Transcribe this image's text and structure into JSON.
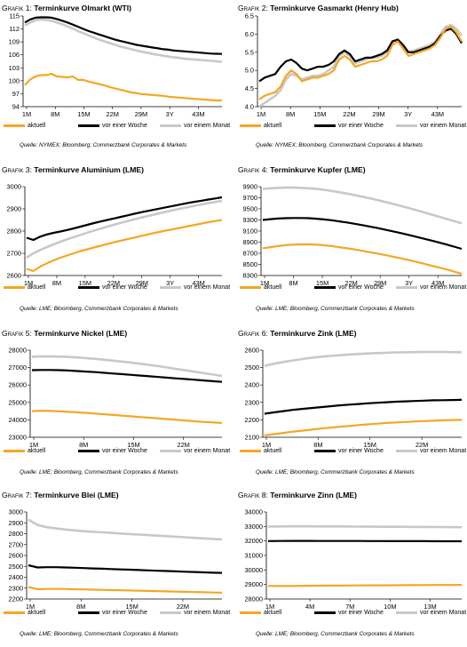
{
  "legend_labels": [
    "aktuell",
    "vor einer Woche",
    "vor einem Monat"
  ],
  "colors": {
    "aktuell": "#F5A623",
    "vor_einer_woche": "#000000",
    "vor_einem_monat": "#C8C8C8"
  },
  "chart_data": [
    {
      "type": "line",
      "prefix": "Grafik 1: ",
      "title": "Terminkurve Olmarkt (WTI)",
      "source": "Quelle: NYMEX; Bloomberg; Commerzbank Corporates & Markets",
      "x_ticks": [
        "1M",
        "8M",
        "15M",
        "22M",
        "29M",
        "3Y",
        "43M"
      ],
      "y_ticks": [
        94,
        97,
        100,
        103,
        106,
        109,
        112,
        115
      ],
      "ylim": [
        94,
        115
      ],
      "series": [
        {
          "name": "aktuell",
          "values": [
            99.0,
            100.3,
            101.0,
            101.3,
            101.3,
            101.6,
            101.0,
            100.9,
            100.8,
            101.0,
            100.2,
            100.2,
            99.8,
            99.5,
            99.2,
            98.9,
            98.5,
            98.2,
            97.9,
            97.6,
            97.3,
            97.1,
            96.9,
            96.8,
            96.7,
            96.6,
            96.5,
            96.3,
            96.2,
            96.1,
            96.0,
            95.9,
            95.8,
            95.7,
            95.6,
            95.5,
            95.45,
            95.4
          ]
        },
        {
          "name": "vor einer Woche",
          "values": [
            113.5,
            114.2,
            114.6,
            114.7,
            114.7,
            114.6,
            114.3,
            113.9,
            113.5,
            113.0,
            112.5,
            112.0,
            111.5,
            111.1,
            110.7,
            110.3,
            109.9,
            109.5,
            109.2,
            108.9,
            108.6,
            108.3,
            108.1,
            107.9,
            107.7,
            107.5,
            107.3,
            107.2,
            107.0,
            106.9,
            106.8,
            106.7,
            106.6,
            106.5,
            106.4,
            106.3,
            106.25,
            106.2
          ]
        },
        {
          "name": "vor einem Monat",
          "values": [
            112.8,
            113.5,
            114.0,
            114.2,
            114.1,
            113.9,
            113.5,
            113.1,
            112.6,
            112.1,
            111.5,
            111.0,
            110.5,
            110.0,
            109.5,
            109.1,
            108.7,
            108.3,
            107.9,
            107.6,
            107.3,
            107.0,
            106.7,
            106.5,
            106.2,
            106.0,
            105.8,
            105.6,
            105.4,
            105.3,
            105.1,
            105.0,
            104.9,
            104.8,
            104.7,
            104.6,
            104.5,
            104.4
          ]
        }
      ]
    },
    {
      "type": "line",
      "prefix": "Grafik 2: ",
      "title": "Terminkurve Gasmarkt (Henry Hub)",
      "source": "Quelle: NYMEX; Bloomberg, Commerzbank Corporates & Markets",
      "x_ticks": [
        "1M",
        "8M",
        "15M",
        "22M",
        "29M",
        "3Y",
        "43M"
      ],
      "y_ticks": [
        4.0,
        4.5,
        5.0,
        5.5,
        6.0,
        6.5
      ],
      "ylim": [
        4.0,
        6.5
      ],
      "series": [
        {
          "name": "aktuell",
          "values": [
            4.2,
            4.3,
            4.35,
            4.4,
            4.55,
            4.85,
            5.0,
            4.9,
            4.7,
            4.75,
            4.8,
            4.8,
            4.85,
            4.9,
            5.0,
            5.3,
            5.4,
            5.3,
            5.1,
            5.15,
            5.2,
            5.25,
            5.25,
            5.3,
            5.4,
            5.7,
            5.8,
            5.6,
            5.4,
            5.45,
            5.5,
            5.55,
            5.6,
            5.7,
            5.9,
            6.15,
            6.2,
            6.05,
            5.8
          ]
        },
        {
          "name": "vor einer Woche",
          "values": [
            4.7,
            4.8,
            4.85,
            4.9,
            5.1,
            5.25,
            5.3,
            5.2,
            5.05,
            5.0,
            5.05,
            5.1,
            5.1,
            5.15,
            5.25,
            5.45,
            5.55,
            5.45,
            5.25,
            5.3,
            5.35,
            5.35,
            5.4,
            5.45,
            5.55,
            5.8,
            5.85,
            5.7,
            5.5,
            5.5,
            5.55,
            5.6,
            5.65,
            5.75,
            5.95,
            6.1,
            6.15,
            6.0,
            5.75
          ]
        },
        {
          "name": "vor einem Monat",
          "values": [
            4.0,
            4.1,
            4.2,
            4.3,
            4.45,
            4.75,
            4.9,
            4.85,
            4.75,
            4.8,
            4.85,
            4.85,
            4.9,
            5.0,
            5.1,
            5.4,
            5.5,
            5.4,
            5.2,
            5.25,
            5.3,
            5.35,
            5.35,
            5.4,
            5.5,
            5.8,
            5.85,
            5.7,
            5.5,
            5.55,
            5.6,
            5.65,
            5.7,
            5.8,
            6.0,
            6.2,
            6.25,
            6.15,
            5.95
          ]
        }
      ]
    },
    {
      "type": "line",
      "prefix": "Grafik 3: ",
      "title": "Terminkurve Aluminium (LME)",
      "source": "Quelle: LME; Bloomberg, Commerzbank Corporates & Markets",
      "x_ticks": [
        "1M",
        "8M",
        "15M",
        "22M",
        "29M",
        "3Y",
        "43M"
      ],
      "y_ticks": [
        2600,
        2700,
        2800,
        2900,
        3000
      ],
      "ylim": [
        2600,
        3000
      ],
      "series": [
        {
          "name": "aktuell",
          "values": [
            2630,
            2620,
            2640,
            2655,
            2668,
            2680,
            2690,
            2700,
            2710,
            2718,
            2726,
            2734,
            2742,
            2750,
            2757,
            2764,
            2771,
            2778,
            2785,
            2792,
            2798,
            2804,
            2810,
            2816,
            2822,
            2828,
            2834,
            2840,
            2845,
            2850
          ]
        },
        {
          "name": "vor einer Woche",
          "values": [
            2770,
            2760,
            2775,
            2785,
            2792,
            2798,
            2805,
            2812,
            2820,
            2828,
            2836,
            2843,
            2850,
            2857,
            2864,
            2871,
            2878,
            2885,
            2891,
            2897,
            2903,
            2909,
            2915,
            2921,
            2927,
            2932,
            2937,
            2942,
            2947,
            2952
          ]
        },
        {
          "name": "vor einem Monat",
          "values": [
            2680,
            2700,
            2715,
            2728,
            2740,
            2752,
            2763,
            2773,
            2783,
            2793,
            2802,
            2811,
            2820,
            2829,
            2837,
            2845,
            2853,
            2861,
            2868,
            2875,
            2882,
            2889,
            2896,
            2902,
            2908,
            2914,
            2920,
            2926,
            2931,
            2936
          ]
        }
      ]
    },
    {
      "type": "line",
      "prefix": "Grafik 4: ",
      "title": "Terminkurve Kupfer (LME)",
      "source": "Quelle: LME; Bloomberg, Commerzbank Corporates & Markets",
      "x_ticks": [
        "1M",
        "8M",
        "15M",
        "22M",
        "29M",
        "3Y",
        "43M"
      ],
      "y_ticks": [
        8300,
        8500,
        8700,
        8900,
        9100,
        9300,
        9500,
        9700,
        9900
      ],
      "ylim": [
        8300,
        9900
      ],
      "series": [
        {
          "name": "aktuell",
          "values": [
            8790,
            8810,
            8830,
            8845,
            8855,
            8860,
            8860,
            8855,
            8845,
            8830,
            8810,
            8790,
            8770,
            8745,
            8720,
            8695,
            8670,
            8640,
            8610,
            8580,
            8550,
            8515,
            8480,
            8445,
            8410,
            8370,
            8330
          ]
        },
        {
          "name": "vor einer Woche",
          "values": [
            9300,
            9315,
            9325,
            9332,
            9336,
            9336,
            9332,
            9322,
            9310,
            9295,
            9275,
            9255,
            9232,
            9208,
            9182,
            9155,
            9126,
            9096,
            9065,
            9033,
            9000,
            8965,
            8930,
            8895,
            8858,
            8820,
            8780
          ]
        },
        {
          "name": "vor einem Monat",
          "values": [
            9860,
            9870,
            9878,
            9882,
            9882,
            9878,
            9870,
            9858,
            9842,
            9822,
            9800,
            9775,
            9748,
            9720,
            9690,
            9658,
            9625,
            9590,
            9555,
            9518,
            9480,
            9440,
            9400,
            9360,
            9320,
            9280,
            9240
          ]
        }
      ]
    },
    {
      "type": "line",
      "prefix": "Grafik 5: ",
      "title": "Terminkurve Nickel (LME)",
      "source": "Quelle: LME; Bloomberg, Commerzbank Corporates & Markets",
      "x_ticks": [
        "1M",
        "8M",
        "15M",
        "22M"
      ],
      "y_ticks": [
        23000,
        24000,
        25000,
        26000,
        27000,
        28000
      ],
      "ylim": [
        23000,
        28000
      ],
      "series": [
        {
          "name": "aktuell",
          "values": [
            24500,
            24520,
            24510,
            24490,
            24460,
            24430,
            24400,
            24360,
            24320,
            24280,
            24240,
            24200,
            24160,
            24120,
            24080,
            24040,
            24000,
            23960,
            23920,
            23880,
            23850,
            23820
          ]
        },
        {
          "name": "vor einer Woche",
          "values": [
            26850,
            26860,
            26860,
            26850,
            26830,
            26800,
            26770,
            26740,
            26700,
            26660,
            26620,
            26580,
            26540,
            26500,
            26460,
            26420,
            26380,
            26340,
            26300,
            26260,
            26220,
            26180
          ]
        },
        {
          "name": "vor einem Monat",
          "values": [
            27620,
            27640,
            27640,
            27630,
            27610,
            27580,
            27540,
            27500,
            27450,
            27400,
            27340,
            27280,
            27220,
            27150,
            27080,
            27000,
            26920,
            26840,
            26760,
            26680,
            26600,
            26520
          ]
        }
      ]
    },
    {
      "type": "line",
      "prefix": "Grafik 6: ",
      "title": "Terminkurve Zink (LME)",
      "source": "Quelle: LME; Bloomberg, Commerzbank Corporates & Markets",
      "x_ticks": [
        "1M",
        "8M",
        "15M",
        "22M"
      ],
      "y_ticks": [
        2100,
        2200,
        2300,
        2400,
        2500,
        2600
      ],
      "ylim": [
        2100,
        2600
      ],
      "series": [
        {
          "name": "aktuell",
          "values": [
            2110,
            2118,
            2125,
            2132,
            2138,
            2144,
            2150,
            2155,
            2160,
            2165,
            2170,
            2174,
            2178,
            2182,
            2185,
            2188,
            2191,
            2193,
            2195,
            2197,
            2199,
            2200
          ]
        },
        {
          "name": "vor einer Woche",
          "values": [
            2235,
            2243,
            2250,
            2257,
            2263,
            2268,
            2273,
            2278,
            2283,
            2287,
            2291,
            2295,
            2298,
            2301,
            2304,
            2306,
            2308,
            2310,
            2312,
            2313,
            2314,
            2315
          ]
        },
        {
          "name": "vor einem Monat",
          "values": [
            2510,
            2522,
            2532,
            2541,
            2549,
            2556,
            2562,
            2567,
            2571,
            2575,
            2578,
            2581,
            2583,
            2585,
            2587,
            2588,
            2589,
            2590,
            2590,
            2590,
            2589,
            2588
          ]
        }
      ]
    },
    {
      "type": "line",
      "prefix": "Grafik 7: ",
      "title": "Terminkurve Blei (LME)",
      "source": "Quelle: LME; Bloomberg, Commerzbank Corporates & Markets",
      "x_ticks": [
        "1M",
        "8M",
        "15M",
        "22M"
      ],
      "y_ticks": [
        2200,
        2300,
        2400,
        2500,
        2600,
        2700,
        2800,
        2900,
        3000
      ],
      "ylim": [
        2200,
        3000
      ],
      "series": [
        {
          "name": "aktuell",
          "values": [
            2310,
            2290,
            2292,
            2293,
            2292,
            2290,
            2288,
            2286,
            2284,
            2282,
            2280,
            2278,
            2276,
            2274,
            2272,
            2270,
            2268,
            2266,
            2264,
            2262,
            2260,
            2258
          ]
        },
        {
          "name": "vor einer Woche",
          "values": [
            2510,
            2490,
            2492,
            2492,
            2490,
            2487,
            2484,
            2481,
            2478,
            2475,
            2472,
            2469,
            2466,
            2463,
            2460,
            2457,
            2454,
            2451,
            2448,
            2445,
            2442,
            2440
          ]
        },
        {
          "name": "vor einem Monat",
          "values": [
            2930,
            2880,
            2860,
            2848,
            2838,
            2830,
            2823,
            2817,
            2812,
            2807,
            2802,
            2797,
            2792,
            2787,
            2782,
            2777,
            2772,
            2767,
            2762,
            2757,
            2752,
            2748
          ]
        }
      ]
    },
    {
      "type": "line",
      "prefix": "Grafik 8: ",
      "title": "Terminkurve Zinn (LME)",
      "source": "Quelle: LME; Bloomberg, Commerzbank Corporates & Markets",
      "x_ticks": [
        "1M",
        "4M",
        "7M",
        "10M",
        "13M"
      ],
      "y_ticks": [
        28000,
        29000,
        30000,
        31000,
        32000,
        33000,
        34000
      ],
      "ylim": [
        28000,
        34000
      ],
      "series": [
        {
          "name": "aktuell",
          "values": [
            28900,
            28895,
            28900,
            28910,
            28920,
            28925,
            28930,
            28935,
            28940,
            28945,
            28950,
            28955,
            28960,
            28965,
            28970,
            28975
          ]
        },
        {
          "name": "vor einer Woche",
          "values": [
            31990,
            32000,
            32005,
            32005,
            32000,
            32000,
            31998,
            31995,
            31993,
            31990,
            31988,
            31986,
            31984,
            31982,
            31980,
            31978
          ]
        },
        {
          "name": "vor einem Monat",
          "values": [
            32990,
            33000,
            33010,
            33010,
            33005,
            33000,
            32995,
            32990,
            32985,
            32980,
            32975,
            32970,
            32965,
            32960,
            32955,
            32950
          ]
        }
      ]
    }
  ]
}
